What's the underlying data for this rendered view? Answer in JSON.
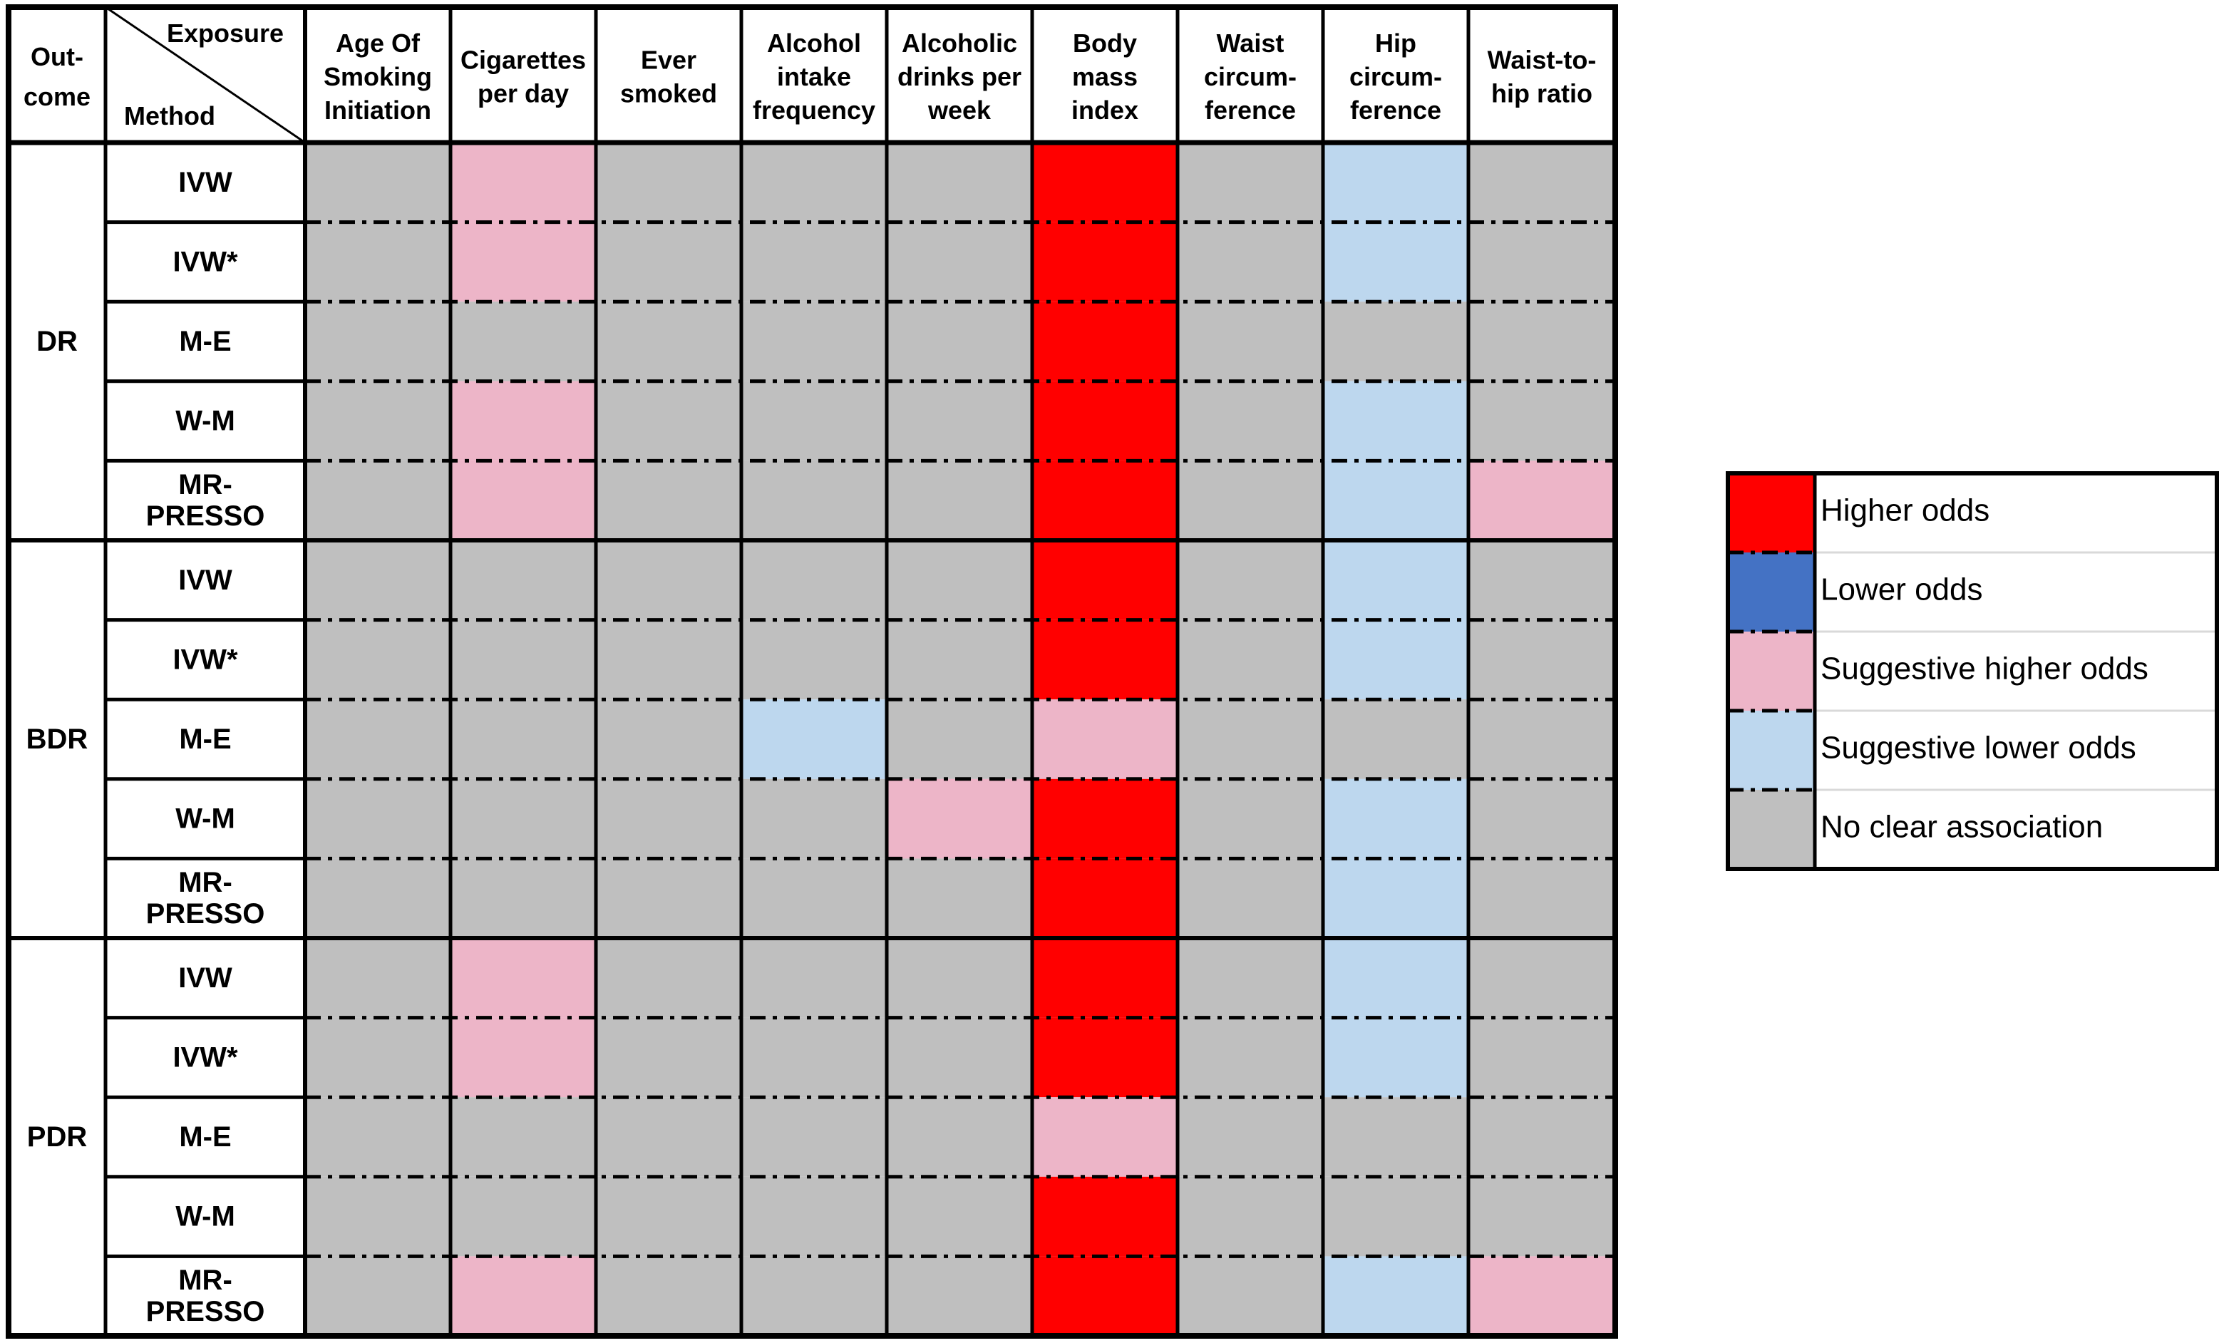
{
  "chart_data": {
    "type": "heatmap",
    "corner": {
      "outcome_label": [
        "Out-",
        "come"
      ],
      "exposure_label": "Exposure",
      "method_label": "Method"
    },
    "columns": [
      [
        "Age Of",
        "Smoking",
        "Initiation"
      ],
      [
        "Cigarettes",
        "per day"
      ],
      [
        "Ever",
        "smoked"
      ],
      [
        "Alcohol",
        "intake",
        "frequency"
      ],
      [
        "Alcoholic",
        "drinks per",
        "week"
      ],
      [
        "Body",
        "mass",
        "index"
      ],
      [
        "Waist",
        "circum-",
        "ference"
      ],
      [
        "Hip",
        "circum-",
        "ference"
      ],
      [
        "Waist-to-",
        "hip ratio"
      ]
    ],
    "groups": [
      {
        "outcome": "DR",
        "rows": [
          {
            "method": [
              "IVW"
            ],
            "cells": [
              "N",
              "SH",
              "N",
              "N",
              "N",
              "H",
              "N",
              "SL",
              "N"
            ]
          },
          {
            "method": [
              "IVW*"
            ],
            "cells": [
              "N",
              "SH",
              "N",
              "N",
              "N",
              "H",
              "N",
              "SL",
              "N"
            ]
          },
          {
            "method": [
              "M-E"
            ],
            "cells": [
              "N",
              "N",
              "N",
              "N",
              "N",
              "H",
              "N",
              "N",
              "N"
            ]
          },
          {
            "method": [
              "W-M"
            ],
            "cells": [
              "N",
              "SH",
              "N",
              "N",
              "N",
              "H",
              "N",
              "SL",
              "N"
            ]
          },
          {
            "method": [
              "MR-",
              "PRESSO"
            ],
            "cells": [
              "N",
              "SH",
              "N",
              "N",
              "N",
              "H",
              "N",
              "SL",
              "SH"
            ]
          }
        ]
      },
      {
        "outcome": "BDR",
        "rows": [
          {
            "method": [
              "IVW"
            ],
            "cells": [
              "N",
              "N",
              "N",
              "N",
              "N",
              "H",
              "N",
              "SL",
              "N"
            ]
          },
          {
            "method": [
              "IVW*"
            ],
            "cells": [
              "N",
              "N",
              "N",
              "N",
              "N",
              "H",
              "N",
              "SL",
              "N"
            ]
          },
          {
            "method": [
              "M-E"
            ],
            "cells": [
              "N",
              "N",
              "N",
              "SL",
              "N",
              "SH",
              "N",
              "N",
              "N"
            ]
          },
          {
            "method": [
              "W-M"
            ],
            "cells": [
              "N",
              "N",
              "N",
              "N",
              "SH",
              "H",
              "N",
              "SL",
              "N"
            ]
          },
          {
            "method": [
              "MR-",
              "PRESSO"
            ],
            "cells": [
              "N",
              "N",
              "N",
              "N",
              "N",
              "H",
              "N",
              "SL",
              "N"
            ]
          }
        ]
      },
      {
        "outcome": "PDR",
        "rows": [
          {
            "method": [
              "IVW"
            ],
            "cells": [
              "N",
              "SH",
              "N",
              "N",
              "N",
              "H",
              "N",
              "SL",
              "N"
            ]
          },
          {
            "method": [
              "IVW*"
            ],
            "cells": [
              "N",
              "SH",
              "N",
              "N",
              "N",
              "H",
              "N",
              "SL",
              "N"
            ]
          },
          {
            "method": [
              "M-E"
            ],
            "cells": [
              "N",
              "N",
              "N",
              "N",
              "N",
              "SH",
              "N",
              "N",
              "N"
            ]
          },
          {
            "method": [
              "W-M"
            ],
            "cells": [
              "N",
              "N",
              "N",
              "N",
              "N",
              "H",
              "N",
              "N",
              "N"
            ]
          },
          {
            "method": [
              "MR-",
              "PRESSO"
            ],
            "cells": [
              "N",
              "SH",
              "N",
              "N",
              "N",
              "H",
              "N",
              "SL",
              "SH"
            ]
          }
        ]
      }
    ],
    "legend": [
      {
        "code": "H",
        "label": "Higher odds",
        "color": "#ff0000"
      },
      {
        "code": "L",
        "label": "Lower odds",
        "color": "#4472c4"
      },
      {
        "code": "SH",
        "label": "Suggestive higher odds",
        "color": "#edb5c8"
      },
      {
        "code": "SL",
        "label": "Suggestive lower odds",
        "color": "#bdd7ee"
      },
      {
        "code": "N",
        "label": "No clear association",
        "color": "#bfbfbf"
      }
    ],
    "legend_placement": "right"
  }
}
